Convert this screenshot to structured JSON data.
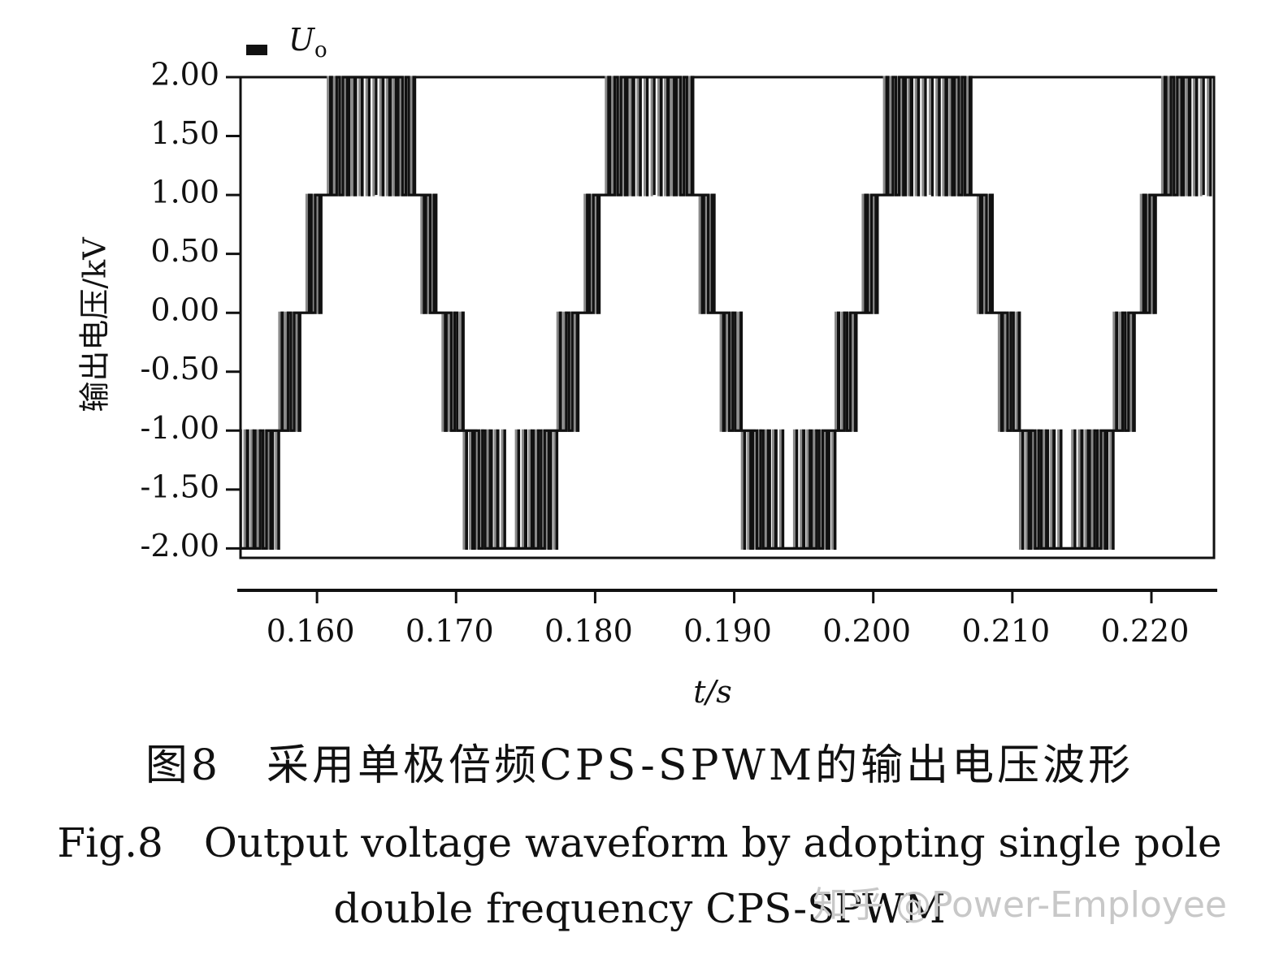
{
  "chart_data": {
    "type": "line",
    "title": "",
    "xlabel": "t/s",
    "ylabel": "输出电压/kV",
    "xlim": [
      0.1545,
      0.2245
    ],
    "ylim": [
      -2.08,
      2.0
    ],
    "x_ticks": [
      0.16,
      0.17,
      0.18,
      0.19,
      0.2,
      0.21,
      0.22
    ],
    "x_tick_labels": [
      "0.160",
      "0.170",
      "0.180",
      "0.190",
      "0.200",
      "0.210",
      "0.220"
    ],
    "y_ticks": [
      2.0,
      1.5,
      1.0,
      0.5,
      0.0,
      -0.5,
      -1.0,
      -1.5,
      -2.0
    ],
    "y_tick_labels": [
      "2.00",
      "1.50",
      "1.00",
      "0.50",
      "0.00",
      "-0.50",
      "-1.00",
      "-1.50",
      "-2.00"
    ],
    "legend": {
      "label": "U",
      "label_sub": "o",
      "position": "top-left"
    },
    "series": [
      {
        "name": "U",
        "waveform": "five-level staircase PWM",
        "frequency_hz": 50,
        "levels_kv": [
          -2.0,
          -1.0,
          0.0,
          1.0,
          2.0
        ],
        "amplitude_kv": 2.0,
        "peaks_s": [
          0.164,
          0.184,
          0.204,
          0.224
        ],
        "troughs_s": [
          0.154,
          0.174,
          0.194,
          0.214
        ],
        "color": "#111111"
      }
    ],
    "grid": false
  },
  "caption": {
    "cn": "图8　采用单极倍频CPS-SPWM的输出电压波形",
    "en_line1": "Fig.8　Output voltage waveform by adopting single pole",
    "en_line2": "double frequency CPS-SPWM"
  },
  "watermark": "知乎 @Power-Employee"
}
